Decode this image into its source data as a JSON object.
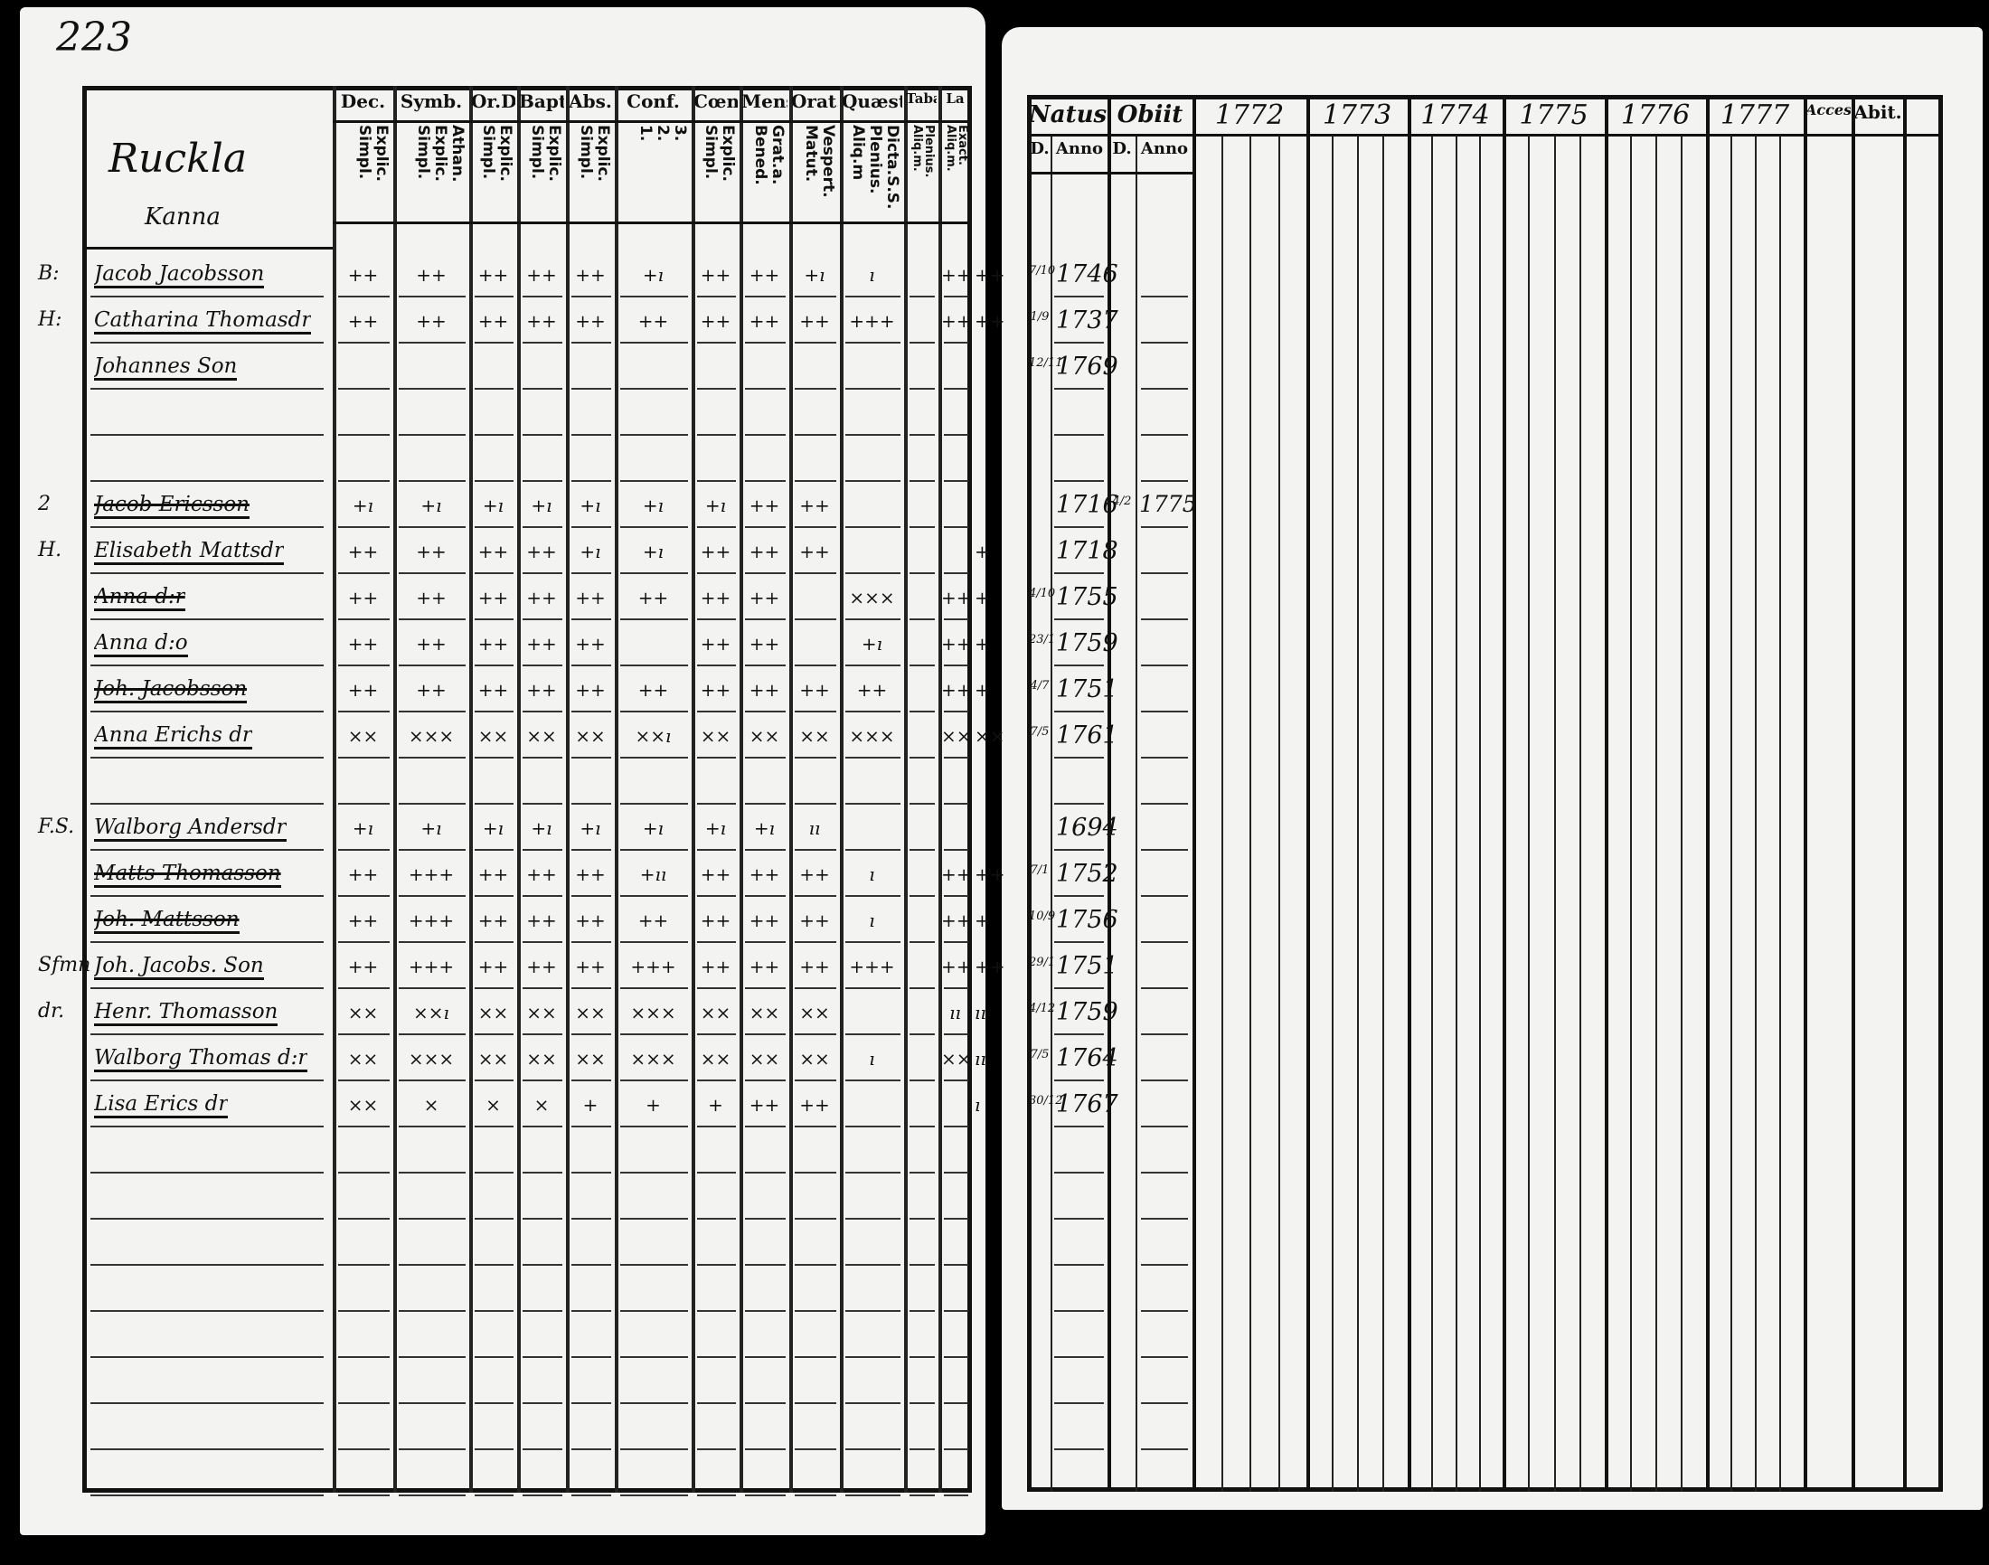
{
  "page_number": "223",
  "left_page": {
    "village": "Ruckla",
    "village_sub": "Kanna",
    "columns": [
      {
        "head": "Dec.",
        "sub": "Explic.\nSimpl."
      },
      {
        "head": "Symb.",
        "sub": "Athan.\nExplic.\nSimpl."
      },
      {
        "head": "Or.D",
        "sub": "Explic.\nSimpl."
      },
      {
        "head": "Bapt.",
        "sub": "Explic.\nSimpl."
      },
      {
        "head": "Abs.",
        "sub": "Explic.\nSimpl."
      },
      {
        "head": "Conf.",
        "sub": "3.\n2.\n1."
      },
      {
        "head": "Cœn.D",
        "sub": "Explic.\nSimpl."
      },
      {
        "head": "Mens.",
        "sub": "Grat.a.\nBened."
      },
      {
        "head": "Orat.",
        "sub": "Vespert.\nMatut."
      },
      {
        "head": "Quæst.",
        "sub": "Dicta.S.S.\nPlenius.\nAliq.m"
      },
      {
        "head": "Taba",
        "sub": "Plenius.\nAliq.m."
      },
      {
        "head": "La",
        "sub": "Exact.\nAliq.m."
      }
    ]
  },
  "right_page": {
    "natus": {
      "head": "Natus",
      "day": "D.",
      "year": "Anno"
    },
    "obiit": {
      "head": "Obiit",
      "day": "D.",
      "year": "Anno"
    },
    "years": [
      "1772",
      "1773",
      "1774",
      "1775",
      "1776",
      "1777"
    ],
    "accessit": "Access.",
    "abiit": "Abit."
  },
  "rows": [
    {
      "margin": "B:",
      "name": "Jacob Jacobsson",
      "struck": false,
      "marks": [
        "++",
        "++",
        "++",
        "++",
        "++",
        "+ı",
        "++",
        "++",
        "+ı",
        "ı",
        "",
        "++",
        "++"
      ],
      "natus_day": "7/10",
      "natus_year": "1746",
      "obiit_day": "",
      "obiit_year": ""
    },
    {
      "margin": "H:",
      "name": "Catharina Thomasdr",
      "struck": false,
      "marks": [
        "++",
        "++",
        "++",
        "++",
        "++",
        "++",
        "++",
        "++",
        "++",
        "+++",
        "",
        "++",
        "++"
      ],
      "natus_day": "1/9",
      "natus_year": "1737",
      "obiit_day": "",
      "obiit_year": ""
    },
    {
      "margin": "",
      "name": "Johannes Son",
      "struck": false,
      "marks": [],
      "natus_day": "12/11",
      "natus_year": "1769",
      "obiit_day": "",
      "obiit_year": ""
    },
    {
      "margin": "",
      "name": "",
      "struck": false,
      "marks": [],
      "natus_day": "",
      "natus_year": "",
      "obiit_day": "",
      "obiit_year": ""
    },
    {
      "margin": "",
      "name": "",
      "struck": false,
      "marks": [],
      "natus_day": "",
      "natus_year": "",
      "obiit_day": "",
      "obiit_year": ""
    },
    {
      "margin": "2",
      "name": "Jacob Ericsson",
      "struck": true,
      "marks": [
        "+ı",
        "+ı",
        "+ı",
        "+ı",
        "+ı",
        "+ı",
        "+ı",
        "++",
        "++",
        "",
        "",
        "",
        ""
      ],
      "natus_day": "",
      "natus_year": "1716",
      "obiit_day": "4/2",
      "obiit_year": "1775"
    },
    {
      "margin": "H.",
      "name": "Elisabeth Mattsdr",
      "struck": false,
      "marks": [
        "++",
        "++",
        "++",
        "++",
        "+ı",
        "+ı",
        "++",
        "++",
        "++",
        "",
        "",
        "",
        "+"
      ],
      "natus_day": "",
      "natus_year": "1718",
      "obiit_day": "",
      "obiit_year": ""
    },
    {
      "margin": "",
      "name": "Anna d:r",
      "struck": true,
      "marks": [
        "++",
        "++",
        "++",
        "++",
        "++",
        "++",
        "++",
        "++",
        "",
        "×××",
        "",
        "++",
        "+"
      ],
      "natus_day": "4/10",
      "natus_year": "1755",
      "obiit_day": "",
      "obiit_year": ""
    },
    {
      "margin": "",
      "name": "Anna d:o",
      "struck": false,
      "marks": [
        "++",
        "++",
        "++",
        "++",
        "++",
        "",
        "++",
        "++",
        "",
        "+ı",
        "",
        "++",
        "+"
      ],
      "natus_day": "23/1",
      "natus_year": "1759",
      "obiit_day": "",
      "obiit_year": ""
    },
    {
      "margin": "",
      "name": "Joh. Jacobsson",
      "struck": true,
      "marks": [
        "++",
        "++",
        "++",
        "++",
        "++",
        "++",
        "++",
        "++",
        "++",
        "++",
        "",
        "++",
        "+"
      ],
      "natus_day": "4/7",
      "natus_year": "1751",
      "obiit_day": "",
      "obiit_year": ""
    },
    {
      "margin": "",
      "name": "Anna Erichs dr",
      "struck": false,
      "marks": [
        "××",
        "×××",
        "××",
        "××",
        "××",
        "××ı",
        "××",
        "××",
        "××",
        "×××",
        "",
        "××",
        "××"
      ],
      "natus_day": "7/5",
      "natus_year": "1761",
      "obiit_day": "",
      "obiit_year": ""
    },
    {
      "margin": "",
      "name": "",
      "struck": false,
      "marks": [],
      "natus_day": "",
      "natus_year": "",
      "obiit_day": "",
      "obiit_year": ""
    },
    {
      "margin": "F.S.",
      "name": "Walborg Andersdr",
      "struck": false,
      "marks": [
        "+ı",
        "+ı",
        "+ı",
        "+ı",
        "+ı",
        "+ı",
        "+ı",
        "+ı",
        "ıı",
        "",
        "",
        "",
        ""
      ],
      "natus_day": "",
      "natus_year": "1694",
      "obiit_day": "",
      "obiit_year": ""
    },
    {
      "margin": "",
      "name": "Matts Thomasson",
      "struck": true,
      "marks": [
        "++",
        "+++",
        "++",
        "++",
        "++",
        "+ıı",
        "++",
        "++",
        "++",
        "ı",
        "",
        "++",
        "++"
      ],
      "natus_day": "7/1",
      "natus_year": "1752",
      "obiit_day": "",
      "obiit_year": ""
    },
    {
      "margin": "",
      "name": "Joh. Mattsson",
      "struck": true,
      "marks": [
        "++",
        "+++",
        "++",
        "++",
        "++",
        "++",
        "++",
        "++",
        "++",
        "ı",
        "",
        "++",
        "+"
      ],
      "natus_day": "10/9",
      "natus_year": "1756",
      "obiit_day": "",
      "obiit_year": ""
    },
    {
      "margin": "Sfmn",
      "name": "Joh. Jacobs. Son",
      "struck": false,
      "marks": [
        "++",
        "+++",
        "++",
        "++",
        "++",
        "+++",
        "++",
        "++",
        "++",
        "+++",
        "",
        "++",
        "++"
      ],
      "natus_day": "29/1",
      "natus_year": "1751",
      "obiit_day": "",
      "obiit_year": ""
    },
    {
      "margin": "dr.",
      "name": "Henr. Thomasson",
      "struck": false,
      "marks": [
        "××",
        "××ı",
        "××",
        "××",
        "××",
        "×××",
        "××",
        "××",
        "××",
        "",
        "",
        "ıı",
        "ıı"
      ],
      "natus_day": "4/12",
      "natus_year": "1759",
      "obiit_day": "",
      "obiit_year": ""
    },
    {
      "margin": "",
      "name": "Walborg Thomas d:r",
      "struck": false,
      "marks": [
        "××",
        "×××",
        "××",
        "××",
        "××",
        "×××",
        "××",
        "××",
        "××",
        "ı",
        "",
        "××",
        "ıı"
      ],
      "natus_day": "7/5",
      "natus_year": "1764",
      "obiit_day": "",
      "obiit_year": ""
    },
    {
      "margin": "",
      "name": "Lisa Erics dr",
      "struck": false,
      "marks": [
        "××",
        "×",
        "×",
        "×",
        "+",
        "+",
        "+",
        "++",
        "++",
        "",
        "",
        "",
        "ı"
      ],
      "natus_day": "30/12",
      "natus_year": "1767",
      "obiit_day": "",
      "obiit_year": ""
    }
  ]
}
